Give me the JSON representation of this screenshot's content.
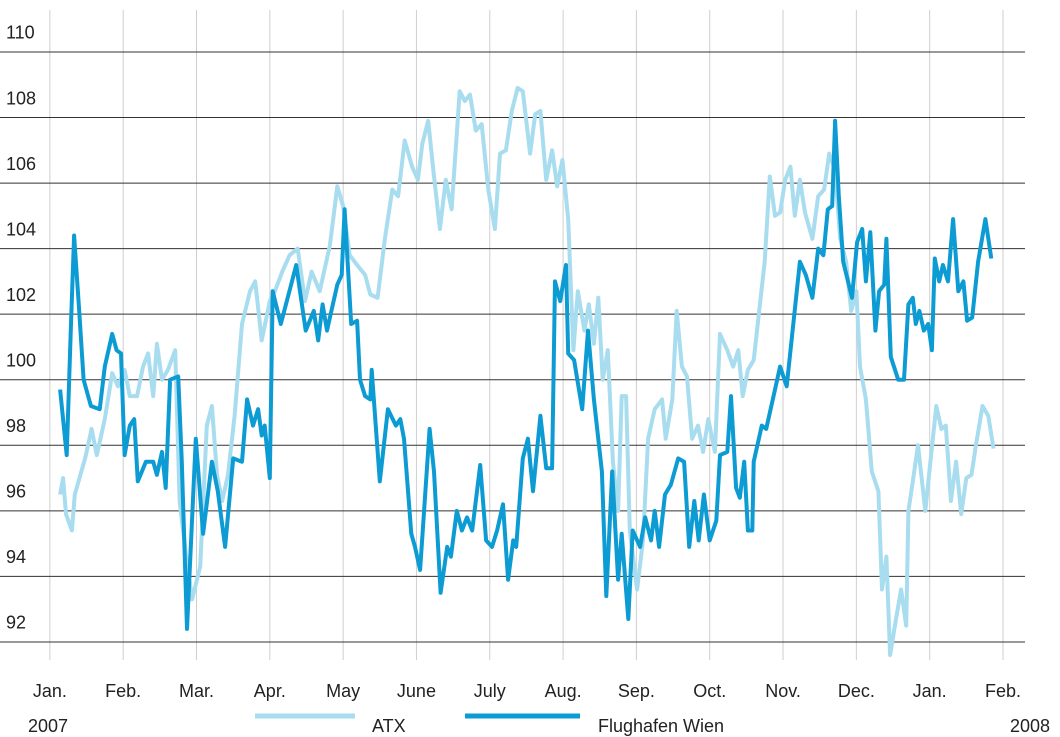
{
  "chart_data": {
    "type": "line",
    "xlim": [
      -0.68,
      13.3
    ],
    "xticks": [
      {
        "value": 0,
        "label": "Jan."
      },
      {
        "value": 1,
        "label": "Feb."
      },
      {
        "value": 2,
        "label": "Mar."
      },
      {
        "value": 3,
        "label": "Apr."
      },
      {
        "value": 4,
        "label": "May"
      },
      {
        "value": 5,
        "label": "June"
      },
      {
        "value": 6,
        "label": "July"
      },
      {
        "value": 7,
        "label": "Aug."
      },
      {
        "value": 8,
        "label": "Sep."
      },
      {
        "value": 9,
        "label": "Oct."
      },
      {
        "value": 10,
        "label": "Nov."
      },
      {
        "value": 11,
        "label": "Dec."
      },
      {
        "value": 12,
        "label": "Jan."
      },
      {
        "value": 13,
        "label": "Feb."
      }
    ],
    "year_start": "2007",
    "year_end": "2008",
    "ylim": [
      91.45,
      111.28
    ],
    "yticks": [
      92,
      94,
      96,
      98,
      100,
      102,
      104,
      106,
      108,
      110
    ],
    "grid": true,
    "series": [
      {
        "name": "ATX",
        "color": "#a8dcef",
        "x": [
          0.14,
          0.18,
          0.22,
          0.3,
          0.34,
          0.48,
          0.57,
          0.64,
          0.75,
          0.85,
          0.93,
          1.02,
          1.09,
          1.19,
          1.27,
          1.34,
          1.41,
          1.46,
          1.53,
          1.61,
          1.71,
          1.77,
          1.86,
          1.94,
          2.05,
          2.14,
          2.21,
          2.28,
          2.35,
          2.43,
          2.52,
          2.62,
          2.73,
          2.8,
          2.89,
          3.0,
          3.07,
          3.17,
          3.27,
          3.38,
          3.48,
          3.57,
          3.68,
          3.82,
          3.92,
          4.0,
          4.09,
          4.19,
          4.3,
          4.37,
          4.47,
          4.57,
          4.67,
          4.75,
          4.84,
          4.94,
          5.02,
          5.08,
          5.16,
          5.23,
          5.32,
          5.4,
          5.48,
          5.59,
          5.66,
          5.73,
          5.81,
          5.89,
          5.98,
          6.07,
          6.14,
          6.22,
          6.3,
          6.38,
          6.45,
          6.55,
          6.62,
          6.69,
          6.77,
          6.85,
          6.92,
          6.99,
          7.07,
          7.14,
          7.2,
          7.29,
          7.35,
          7.42,
          7.48,
          7.54,
          7.61,
          7.68,
          7.75,
          7.8,
          7.86,
          7.91,
          8.01,
          8.09,
          8.16,
          8.25,
          8.35,
          8.4,
          8.49,
          8.55,
          8.62,
          8.69,
          8.76,
          8.84,
          8.91,
          8.98,
          9.07,
          9.14,
          9.24,
          9.32,
          9.39,
          9.45,
          9.52,
          9.6,
          9.69,
          9.75,
          9.82,
          9.89,
          9.96,
          10.03,
          10.1,
          10.16,
          10.23,
          10.3,
          10.4,
          10.48,
          10.56,
          10.63,
          10.71,
          10.78,
          10.86,
          10.93,
          11.0,
          11.05,
          11.13,
          11.21,
          11.3,
          11.35,
          11.41,
          11.46,
          11.54,
          11.61,
          11.68,
          11.71,
          11.77,
          11.84,
          11.94,
          12.01,
          12.09,
          12.16,
          12.22,
          12.29,
          12.36,
          12.43,
          12.5,
          12.57,
          12.63,
          12.72,
          12.8,
          12.87
        ],
        "values": [
          96.5,
          97,
          95.9,
          95.4,
          96.5,
          97.6,
          98.5,
          97.7,
          98.8,
          100.2,
          99.8,
          100.3,
          99.5,
          99.5,
          100.4,
          100.8,
          99.5,
          101.1,
          100,
          100.3,
          100.9,
          96.3,
          94.6,
          93.3,
          94.3,
          98.6,
          99.2,
          97.1,
          96.3,
          97.1,
          98.9,
          101.7,
          102.7,
          103.0,
          101.2,
          102.4,
          102.7,
          103.3,
          103.8,
          104,
          102.4,
          103.3,
          102.7,
          104.1,
          105.9,
          105.3,
          103.8,
          103.5,
          103.2,
          102.6,
          102.5,
          104.3,
          105.8,
          105.6,
          107.3,
          106.5,
          106.1,
          107.2,
          107.9,
          106.4,
          104.6,
          106.1,
          105.2,
          108.8,
          108.5,
          108.7,
          107.6,
          107.8,
          105.8,
          104.6,
          106.9,
          107.0,
          108.2,
          108.9,
          108.8,
          106.9,
          108.1,
          108.2,
          106.1,
          107.0,
          105.9,
          106.7,
          104.9,
          100.9,
          102.7,
          101.5,
          102.3,
          101.1,
          102.5,
          100,
          100.9,
          97.5,
          96.0,
          99.5,
          99.5,
          95.4,
          93.6,
          95.1,
          98.2,
          99.1,
          99.4,
          98.2,
          99.4,
          102.1,
          100.4,
          100.1,
          98.2,
          98.6,
          97.8,
          98.8,
          97.8,
          101.4,
          100.9,
          100.4,
          100.9,
          99.5,
          100.3,
          100.6,
          102.4,
          103.6,
          106.2,
          105.0,
          105.1,
          106.1,
          106.5,
          105.0,
          106.1,
          105.1,
          104.3,
          105.6,
          105.8,
          106.9,
          106.4,
          104.3,
          103.6,
          102.1,
          102.7,
          100.4,
          99.4,
          97.2,
          96.6,
          93.6,
          94.6,
          91.6,
          92.7,
          93.6,
          92.5,
          96,
          96.9,
          98.0,
          96.0,
          97.5,
          99.2,
          98.5,
          98.6,
          96.3,
          97.5,
          95.9,
          97.0,
          97.1,
          98.0,
          99.2,
          98.9,
          97.9
        ]
      },
      {
        "name": "Flughafen Wien",
        "color": "#0d9bd3",
        "x": [
          0.14,
          0.23,
          0.29,
          0.33,
          0.4,
          0.46,
          0.56,
          0.68,
          0.75,
          0.85,
          0.91,
          0.97,
          1.02,
          1.09,
          1.15,
          1.2,
          1.31,
          1.41,
          1.46,
          1.53,
          1.58,
          1.64,
          1.75,
          1.8,
          1.87,
          1.99,
          2.09,
          2.21,
          2.29,
          2.39,
          2.5,
          2.62,
          2.69,
          2.77,
          2.84,
          2.89,
          2.93,
          3.0,
          3.04,
          3.15,
          3.29,
          3.36,
          3.49,
          3.6,
          3.66,
          3.72,
          3.78,
          3.92,
          3.98,
          4.02,
          4.11,
          4.19,
          4.23,
          4.3,
          4.37,
          4.39,
          4.5,
          4.61,
          4.72,
          4.78,
          4.83,
          4.93,
          4.98,
          5.05,
          5.18,
          5.24,
          5.33,
          5.42,
          5.47,
          5.55,
          5.62,
          5.69,
          5.76,
          5.87,
          5.95,
          6.03,
          6.1,
          6.18,
          6.25,
          6.32,
          6.36,
          6.45,
          6.52,
          6.59,
          6.69,
          6.77,
          6.85,
          6.89,
          6.96,
          7.04,
          7.07,
          7.15,
          7.26,
          7.34,
          7.42,
          7.53,
          7.59,
          7.67,
          7.75,
          7.8,
          7.89,
          7.95,
          8.05,
          8.12,
          8.2,
          8.25,
          8.31,
          8.39,
          8.47,
          8.57,
          8.65,
          8.72,
          8.79,
          8.85,
          8.92,
          9.0,
          9.09,
          9.14,
          9.24,
          9.29,
          9.36,
          9.41,
          9.47,
          9.52,
          9.58,
          9.6,
          9.71,
          9.77,
          9.86,
          9.96,
          10.05,
          10.23,
          10.31,
          10.4,
          10.48,
          10.55,
          10.61,
          10.67,
          10.71,
          10.76,
          10.82,
          10.94,
          11.01,
          11.08,
          11.13,
          11.19,
          11.26,
          11.31,
          11.38,
          11.41,
          11.47,
          11.57,
          11.65,
          11.71,
          11.77,
          11.81,
          11.86,
          11.92,
          11.98,
          12.03,
          12.07,
          12.13,
          12.18,
          12.25,
          12.32,
          12.39,
          12.46,
          12.51,
          12.58,
          12.66,
          12.76,
          12.84
        ],
        "values": [
          99.7,
          97.7,
          101.8,
          104.4,
          102.1,
          100,
          99.2,
          99.1,
          100.4,
          101.4,
          100.9,
          100.8,
          97.7,
          98.6,
          98.8,
          96.9,
          97.5,
          97.5,
          97.1,
          97.8,
          96.7,
          100,
          100.1,
          97.5,
          92.4,
          98.2,
          95.3,
          97.5,
          96.6,
          94.9,
          97.6,
          97.5,
          99.4,
          98.6,
          99.1,
          98.3,
          98.6,
          97.0,
          102.7,
          101.7,
          102.9,
          103.5,
          101.5,
          102.1,
          101.2,
          102.3,
          101.5,
          102.9,
          103.2,
          105.2,
          101.7,
          101.8,
          100,
          99.5,
          99.4,
          100.3,
          96.9,
          99.1,
          98.6,
          98.8,
          98.2,
          95.3,
          94.9,
          94.2,
          98.5,
          97.2,
          93.5,
          94.9,
          94.6,
          96.0,
          95.4,
          95.8,
          95.4,
          97.4,
          95.1,
          94.9,
          95.4,
          96.2,
          93.9,
          95.1,
          94.9,
          97.6,
          98.2,
          96.6,
          98.9,
          97.3,
          97.3,
          103.0,
          102.4,
          103.5,
          100.8,
          100.6,
          99.1,
          101.5,
          99.4,
          97.2,
          93.4,
          97.2,
          93.9,
          95.3,
          92.7,
          95.4,
          94.9,
          95.8,
          95.1,
          96.0,
          94.9,
          96.5,
          96.8,
          97.6,
          97.5,
          94.9,
          96.3,
          95.1,
          96.5,
          95.1,
          95.7,
          97.7,
          97.8,
          99.5,
          96.7,
          96.4,
          97.5,
          95.4,
          95.4,
          97.5,
          98.6,
          98.5,
          99.4,
          100.4,
          99.8,
          103.6,
          103.2,
          102.5,
          104,
          103.8,
          105.2,
          105.3,
          107.9,
          105.6,
          103.6,
          102.5,
          104.2,
          104.6,
          103,
          104.5,
          101.5,
          102.7,
          102.9,
          104.3,
          100.7,
          100,
          100,
          102.3,
          102.5,
          101.7,
          102.1,
          101.5,
          101.7,
          100.9,
          103.7,
          103,
          103.5,
          103,
          104.9,
          102.7,
          103,
          101.8,
          101.9,
          103.6,
          104.9,
          103.7
        ]
      }
    ]
  }
}
